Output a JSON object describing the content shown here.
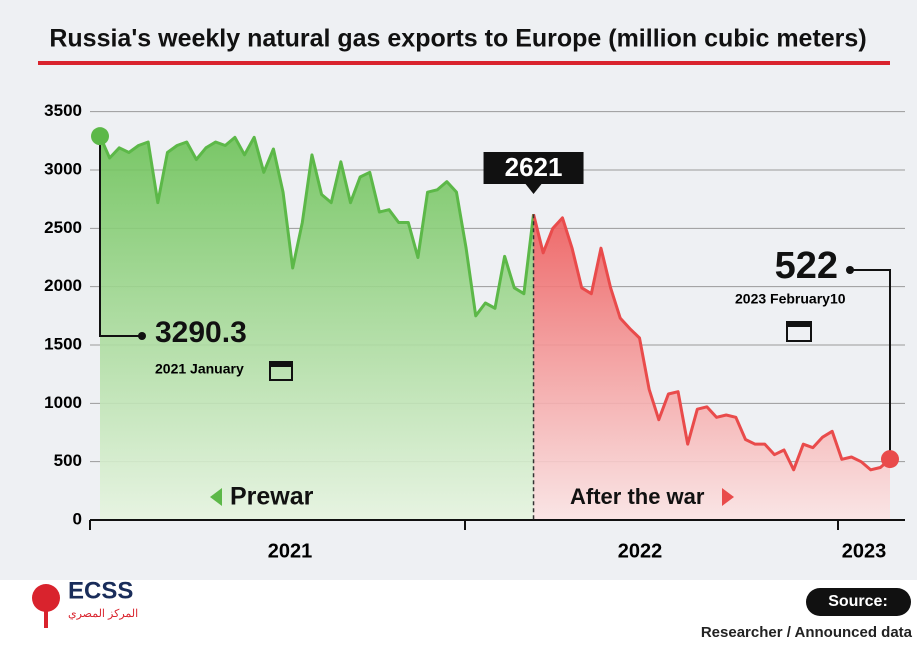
{
  "chart_data": {
    "type": "area",
    "title": "Russia's weekly natural gas exports to Europe (million cubic meters)",
    "series": [
      {
        "name": "Prewar",
        "color": "#5cb848",
        "values": [
          3290.3,
          3103,
          3190,
          3150,
          3210,
          3240,
          2720,
          3150,
          3210,
          3240,
          3090,
          3190,
          3240,
          3210,
          3280,
          3130,
          3280,
          2980,
          3180,
          2810,
          2160,
          2550,
          3130,
          2790,
          2720,
          3070,
          2720,
          2940,
          2980,
          2640,
          2660,
          2550,
          2550,
          2250,
          2810,
          2830,
          2900,
          2810,
          2330,
          1750,
          1860,
          1815,
          2260,
          1990,
          1940,
          2621,
          null,
          null,
          null,
          null,
          null,
          null,
          null,
          null,
          null,
          null,
          null,
          null,
          null,
          null,
          null,
          null,
          null,
          null,
          null,
          null,
          null,
          null,
          null,
          null,
          null,
          null,
          null,
          null,
          null,
          null,
          null,
          null,
          null,
          null,
          null,
          null,
          null
        ]
      },
      {
        "name": "After the war",
        "color": "#e94b4b",
        "values": [
          null,
          null,
          null,
          null,
          null,
          null,
          null,
          null,
          null,
          null,
          null,
          null,
          null,
          null,
          null,
          null,
          null,
          null,
          null,
          null,
          null,
          null,
          null,
          null,
          null,
          null,
          null,
          null,
          null,
          null,
          null,
          null,
          null,
          null,
          null,
          null,
          null,
          null,
          null,
          null,
          null,
          null,
          null,
          null,
          null,
          2621,
          2290,
          2500,
          2590,
          2330,
          1990,
          1940,
          2330,
          1990,
          1730,
          1640,
          1560,
          1120,
          860,
          1080,
          1100,
          650,
          950,
          970,
          880,
          900,
          880,
          690,
          650,
          650,
          560,
          600,
          430,
          650,
          620,
          710,
          760,
          520,
          540,
          500,
          430,
          450,
          522
        ]
      }
    ],
    "year_labels": [
      "2021",
      "2022",
      "2023"
    ],
    "start_date": "2021 January",
    "end_date": "2023 February10",
    "ylim": [
      0,
      3600
    ],
    "yticks": [
      0,
      500,
      1000,
      1500,
      2000,
      2500,
      3000,
      3500
    ],
    "grid": true
  },
  "footer": {
    "brand": "ECSS",
    "brand_arabic": "المركز المصري",
    "source_label": "Source:",
    "source": "Researcher / Announced data"
  }
}
